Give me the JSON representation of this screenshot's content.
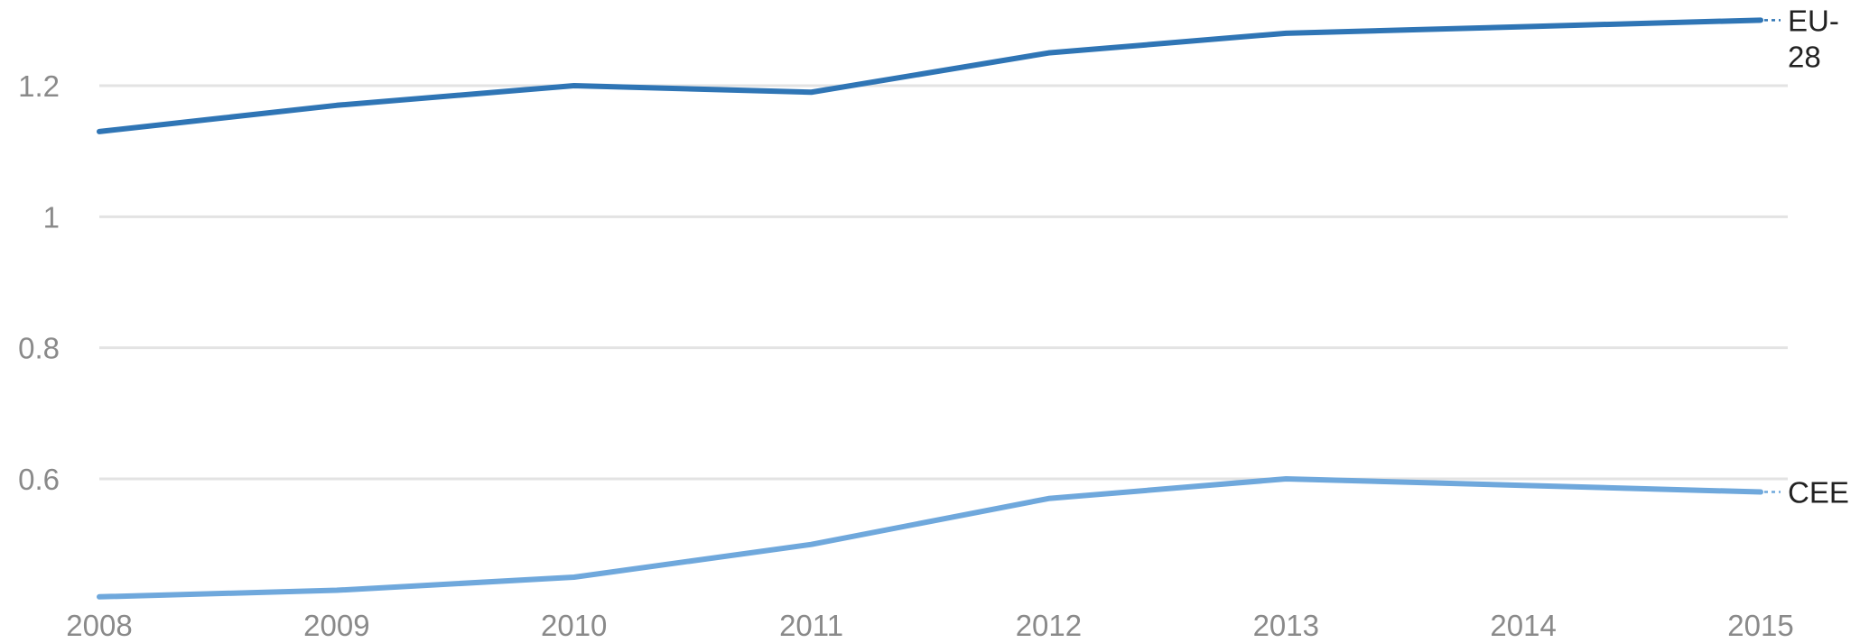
{
  "chart_data": {
    "type": "line",
    "title": "",
    "xlabel": "",
    "ylabel": "",
    "x": [
      2008,
      2009,
      2010,
      2011,
      2012,
      2013,
      2014,
      2015
    ],
    "x_tick_labels": [
      "2008",
      "2009",
      "2010",
      "2011",
      "2012",
      "2013",
      "2014",
      "2015"
    ],
    "y_ticks": [
      0.6,
      0.8,
      1,
      1.2
    ],
    "y_tick_labels": [
      "0.6",
      "0.8",
      "1",
      "1.2"
    ],
    "ylim": [
      0.42,
      1.3
    ],
    "grid": true,
    "legend": "inline-right",
    "series": [
      {
        "name": "EU-28",
        "label_lines": [
          "EU-",
          "28"
        ],
        "color": "#2f75b5",
        "values": [
          1.13,
          1.17,
          1.2,
          1.19,
          1.25,
          1.28,
          1.29,
          1.3
        ]
      },
      {
        "name": "CEE",
        "label_lines": [
          "CEE"
        ],
        "color": "#6fa8dc",
        "values": [
          0.42,
          0.43,
          0.45,
          0.5,
          0.57,
          0.6,
          0.59,
          0.58
        ]
      }
    ]
  }
}
